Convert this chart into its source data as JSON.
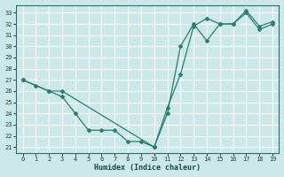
{
  "xlabel": "Humidex (Indice chaleur)",
  "background_color": "#cce8e8",
  "grid_color": "#ffffff",
  "line_color": "#2d7d6e",
  "xlim": [
    -0.5,
    19.5
  ],
  "ylim": [
    20.5,
    33.7
  ],
  "yticks": [
    21,
    22,
    23,
    24,
    25,
    26,
    27,
    28,
    29,
    30,
    31,
    32,
    33
  ],
  "xticks": [
    0,
    1,
    2,
    3,
    4,
    5,
    6,
    7,
    8,
    9,
    10,
    11,
    12,
    13,
    14,
    15,
    16,
    17,
    18,
    19
  ],
  "series1_x": [
    0,
    1,
    2,
    3,
    4,
    5,
    6,
    7,
    8,
    9,
    10,
    11,
    12,
    13,
    14,
    15,
    16,
    17,
    18,
    19
  ],
  "series1_y": [
    27.0,
    26.5,
    26.0,
    25.5,
    24.0,
    22.5,
    22.5,
    22.5,
    21.5,
    21.5,
    21.0,
    24.5,
    27.5,
    31.8,
    32.5,
    32.0,
    32.0,
    33.0,
    31.5,
    32.0
  ],
  "series2_x": [
    0,
    2,
    3,
    10,
    11,
    12,
    13,
    14,
    15,
    16,
    17,
    18,
    19
  ],
  "series2_y": [
    27.0,
    26.0,
    26.0,
    21.0,
    24.0,
    30.0,
    32.0,
    30.5,
    32.0,
    32.0,
    33.2,
    31.8,
    32.2
  ]
}
